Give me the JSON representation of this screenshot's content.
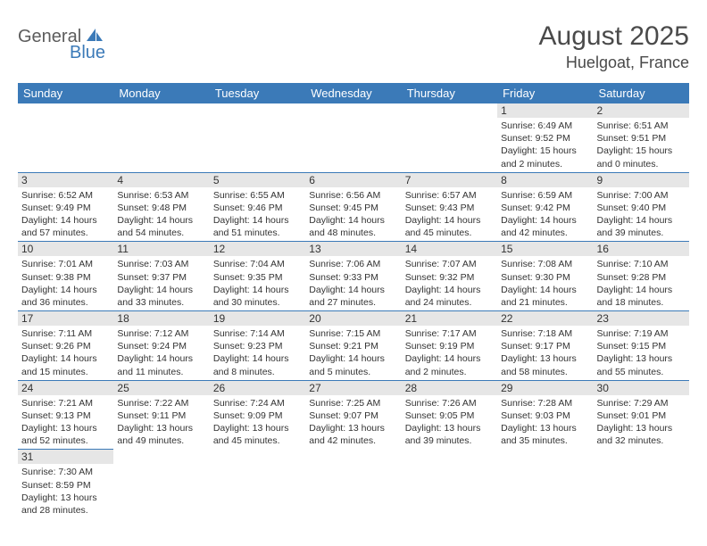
{
  "logo": {
    "part1": "General",
    "part2": "Blue"
  },
  "header": {
    "title": "August 2025",
    "location": "Huelgoat, France"
  },
  "colors": {
    "header_bg": "#3b7ab8",
    "header_text": "#ffffff",
    "daynum_bg": "#e6e6e6",
    "border": "#3b7ab8",
    "text": "#333333",
    "logo_gray": "#5c5c5c",
    "logo_blue": "#3b7ab8"
  },
  "weekdays": [
    "Sunday",
    "Monday",
    "Tuesday",
    "Wednesday",
    "Thursday",
    "Friday",
    "Saturday"
  ],
  "weeks": [
    [
      {
        "day": null
      },
      {
        "day": null
      },
      {
        "day": null
      },
      {
        "day": null
      },
      {
        "day": null
      },
      {
        "day": "1",
        "sunrise": "Sunrise: 6:49 AM",
        "sunset": "Sunset: 9:52 PM",
        "daylight1": "Daylight: 15 hours",
        "daylight2": "and 2 minutes."
      },
      {
        "day": "2",
        "sunrise": "Sunrise: 6:51 AM",
        "sunset": "Sunset: 9:51 PM",
        "daylight1": "Daylight: 15 hours",
        "daylight2": "and 0 minutes."
      }
    ],
    [
      {
        "day": "3",
        "sunrise": "Sunrise: 6:52 AM",
        "sunset": "Sunset: 9:49 PM",
        "daylight1": "Daylight: 14 hours",
        "daylight2": "and 57 minutes."
      },
      {
        "day": "4",
        "sunrise": "Sunrise: 6:53 AM",
        "sunset": "Sunset: 9:48 PM",
        "daylight1": "Daylight: 14 hours",
        "daylight2": "and 54 minutes."
      },
      {
        "day": "5",
        "sunrise": "Sunrise: 6:55 AM",
        "sunset": "Sunset: 9:46 PM",
        "daylight1": "Daylight: 14 hours",
        "daylight2": "and 51 minutes."
      },
      {
        "day": "6",
        "sunrise": "Sunrise: 6:56 AM",
        "sunset": "Sunset: 9:45 PM",
        "daylight1": "Daylight: 14 hours",
        "daylight2": "and 48 minutes."
      },
      {
        "day": "7",
        "sunrise": "Sunrise: 6:57 AM",
        "sunset": "Sunset: 9:43 PM",
        "daylight1": "Daylight: 14 hours",
        "daylight2": "and 45 minutes."
      },
      {
        "day": "8",
        "sunrise": "Sunrise: 6:59 AM",
        "sunset": "Sunset: 9:42 PM",
        "daylight1": "Daylight: 14 hours",
        "daylight2": "and 42 minutes."
      },
      {
        "day": "9",
        "sunrise": "Sunrise: 7:00 AM",
        "sunset": "Sunset: 9:40 PM",
        "daylight1": "Daylight: 14 hours",
        "daylight2": "and 39 minutes."
      }
    ],
    [
      {
        "day": "10",
        "sunrise": "Sunrise: 7:01 AM",
        "sunset": "Sunset: 9:38 PM",
        "daylight1": "Daylight: 14 hours",
        "daylight2": "and 36 minutes."
      },
      {
        "day": "11",
        "sunrise": "Sunrise: 7:03 AM",
        "sunset": "Sunset: 9:37 PM",
        "daylight1": "Daylight: 14 hours",
        "daylight2": "and 33 minutes."
      },
      {
        "day": "12",
        "sunrise": "Sunrise: 7:04 AM",
        "sunset": "Sunset: 9:35 PM",
        "daylight1": "Daylight: 14 hours",
        "daylight2": "and 30 minutes."
      },
      {
        "day": "13",
        "sunrise": "Sunrise: 7:06 AM",
        "sunset": "Sunset: 9:33 PM",
        "daylight1": "Daylight: 14 hours",
        "daylight2": "and 27 minutes."
      },
      {
        "day": "14",
        "sunrise": "Sunrise: 7:07 AM",
        "sunset": "Sunset: 9:32 PM",
        "daylight1": "Daylight: 14 hours",
        "daylight2": "and 24 minutes."
      },
      {
        "day": "15",
        "sunrise": "Sunrise: 7:08 AM",
        "sunset": "Sunset: 9:30 PM",
        "daylight1": "Daylight: 14 hours",
        "daylight2": "and 21 minutes."
      },
      {
        "day": "16",
        "sunrise": "Sunrise: 7:10 AM",
        "sunset": "Sunset: 9:28 PM",
        "daylight1": "Daylight: 14 hours",
        "daylight2": "and 18 minutes."
      }
    ],
    [
      {
        "day": "17",
        "sunrise": "Sunrise: 7:11 AM",
        "sunset": "Sunset: 9:26 PM",
        "daylight1": "Daylight: 14 hours",
        "daylight2": "and 15 minutes."
      },
      {
        "day": "18",
        "sunrise": "Sunrise: 7:12 AM",
        "sunset": "Sunset: 9:24 PM",
        "daylight1": "Daylight: 14 hours",
        "daylight2": "and 11 minutes."
      },
      {
        "day": "19",
        "sunrise": "Sunrise: 7:14 AM",
        "sunset": "Sunset: 9:23 PM",
        "daylight1": "Daylight: 14 hours",
        "daylight2": "and 8 minutes."
      },
      {
        "day": "20",
        "sunrise": "Sunrise: 7:15 AM",
        "sunset": "Sunset: 9:21 PM",
        "daylight1": "Daylight: 14 hours",
        "daylight2": "and 5 minutes."
      },
      {
        "day": "21",
        "sunrise": "Sunrise: 7:17 AM",
        "sunset": "Sunset: 9:19 PM",
        "daylight1": "Daylight: 14 hours",
        "daylight2": "and 2 minutes."
      },
      {
        "day": "22",
        "sunrise": "Sunrise: 7:18 AM",
        "sunset": "Sunset: 9:17 PM",
        "daylight1": "Daylight: 13 hours",
        "daylight2": "and 58 minutes."
      },
      {
        "day": "23",
        "sunrise": "Sunrise: 7:19 AM",
        "sunset": "Sunset: 9:15 PM",
        "daylight1": "Daylight: 13 hours",
        "daylight2": "and 55 minutes."
      }
    ],
    [
      {
        "day": "24",
        "sunrise": "Sunrise: 7:21 AM",
        "sunset": "Sunset: 9:13 PM",
        "daylight1": "Daylight: 13 hours",
        "daylight2": "and 52 minutes."
      },
      {
        "day": "25",
        "sunrise": "Sunrise: 7:22 AM",
        "sunset": "Sunset: 9:11 PM",
        "daylight1": "Daylight: 13 hours",
        "daylight2": "and 49 minutes."
      },
      {
        "day": "26",
        "sunrise": "Sunrise: 7:24 AM",
        "sunset": "Sunset: 9:09 PM",
        "daylight1": "Daylight: 13 hours",
        "daylight2": "and 45 minutes."
      },
      {
        "day": "27",
        "sunrise": "Sunrise: 7:25 AM",
        "sunset": "Sunset: 9:07 PM",
        "daylight1": "Daylight: 13 hours",
        "daylight2": "and 42 minutes."
      },
      {
        "day": "28",
        "sunrise": "Sunrise: 7:26 AM",
        "sunset": "Sunset: 9:05 PM",
        "daylight1": "Daylight: 13 hours",
        "daylight2": "and 39 minutes."
      },
      {
        "day": "29",
        "sunrise": "Sunrise: 7:28 AM",
        "sunset": "Sunset: 9:03 PM",
        "daylight1": "Daylight: 13 hours",
        "daylight2": "and 35 minutes."
      },
      {
        "day": "30",
        "sunrise": "Sunrise: 7:29 AM",
        "sunset": "Sunset: 9:01 PM",
        "daylight1": "Daylight: 13 hours",
        "daylight2": "and 32 minutes."
      }
    ],
    [
      {
        "day": "31",
        "sunrise": "Sunrise: 7:30 AM",
        "sunset": "Sunset: 8:59 PM",
        "daylight1": "Daylight: 13 hours",
        "daylight2": "and 28 minutes."
      },
      {
        "day": null
      },
      {
        "day": null
      },
      {
        "day": null
      },
      {
        "day": null
      },
      {
        "day": null
      },
      {
        "day": null
      }
    ]
  ]
}
